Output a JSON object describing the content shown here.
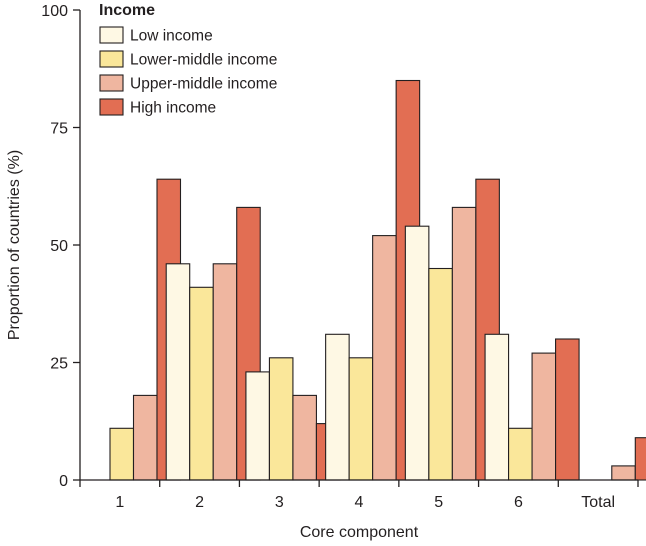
{
  "chart_data": {
    "type": "bar",
    "title": "",
    "xlabel": "Core component",
    "ylabel": "Proportion of countries (%)",
    "ylim": [
      0,
      100
    ],
    "yticks": [
      0,
      25,
      50,
      75,
      100
    ],
    "categories": [
      "1",
      "2",
      "3",
      "4",
      "5",
      "6",
      "Total"
    ],
    "legend_title": "Income",
    "legend_position": "top-left",
    "series": [
      {
        "name": "Low income",
        "color": "#fef8e4",
        "values": [
          0,
          46,
          23,
          31,
          54,
          31,
          0
        ]
      },
      {
        "name": "Lower-middle income",
        "color": "#fae79a",
        "values": [
          11,
          41,
          26,
          26,
          45,
          11,
          0
        ]
      },
      {
        "name": "Upper-middle income",
        "color": "#efb6a0",
        "values": [
          18,
          46,
          18,
          52,
          58,
          27,
          3
        ]
      },
      {
        "name": "High income",
        "color": "#e26e53",
        "values": [
          64,
          58,
          12,
          85,
          64,
          30,
          9
        ]
      }
    ]
  }
}
